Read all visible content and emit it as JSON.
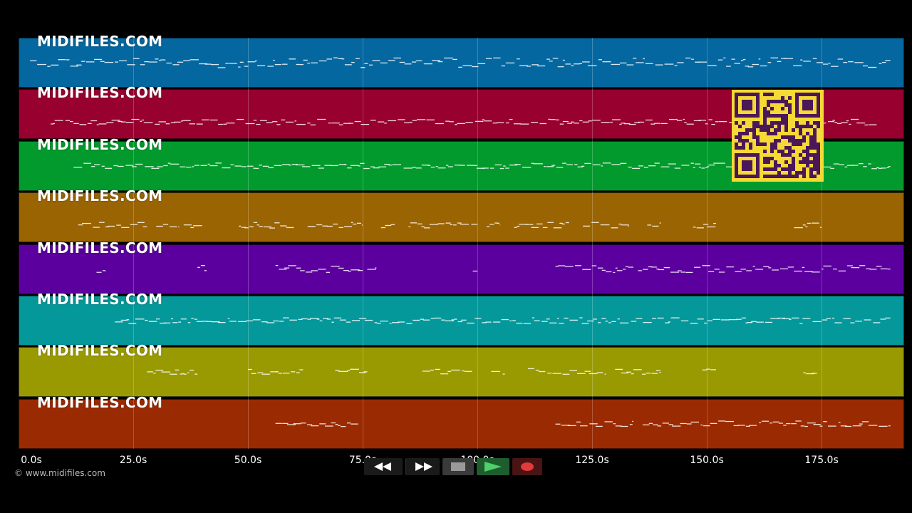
{
  "tracks": [
    {
      "label": "MIDIFILES.COM",
      "color": "#05679f"
    },
    {
      "label": "MIDIFILES.COM",
      "color": "#97002f"
    },
    {
      "label": "MIDIFILES.COM",
      "color": "#029a2c"
    },
    {
      "label": "MIDIFILES.COM",
      "color": "#9a6402"
    },
    {
      "label": "MIDIFILES.COM",
      "color": "#5b009e"
    },
    {
      "label": "MIDIFILES.COM",
      "color": "#04989b"
    },
    {
      "label": "MIDIFILES.COM",
      "color": "#999a02"
    },
    {
      "label": "MIDIFILES.COM",
      "color": "#9a2a02"
    }
  ],
  "timeline": {
    "max_seconds": 193,
    "ticks": [
      "0.0s",
      "25.0s",
      "50.0s",
      "75.0s",
      "100.0s",
      "125.0s",
      "150.0s",
      "175.0s"
    ],
    "tick_values": [
      0,
      25,
      50,
      75,
      100,
      125,
      150,
      175
    ]
  },
  "note_ranges": [
    [
      [
        2.5,
        190
      ]
    ],
    [
      [
        7,
        187
      ]
    ],
    [
      [
        12,
        190
      ]
    ],
    [
      [
        13,
        28
      ],
      [
        30,
        35
      ],
      [
        36,
        40
      ],
      [
        48,
        60
      ],
      [
        63,
        75
      ],
      [
        79,
        82
      ],
      [
        85,
        100
      ],
      [
        102,
        105
      ],
      [
        108,
        120
      ],
      [
        123,
        133
      ],
      [
        137,
        140
      ],
      [
        147,
        152
      ],
      [
        169,
        175
      ]
    ],
    [
      [
        17,
        19
      ],
      [
        39,
        41
      ],
      [
        56,
        67
      ],
      [
        67,
        75
      ],
      [
        76,
        78
      ],
      [
        99,
        100
      ],
      [
        117,
        134
      ],
      [
        135,
        190
      ]
    ],
    [
      [
        21,
        190
      ]
    ],
    [
      [
        28,
        39
      ],
      [
        50,
        62
      ],
      [
        69,
        76
      ],
      [
        88,
        99
      ],
      [
        103,
        106
      ],
      [
        111,
        128
      ],
      [
        130,
        140
      ],
      [
        149,
        152
      ],
      [
        171,
        174
      ]
    ],
    [
      [
        56,
        74
      ],
      [
        117,
        134
      ],
      [
        136,
        190
      ]
    ]
  ],
  "copyright": "© www.midifiles.com",
  "transport": {
    "rewind_icon": "rewind-icon",
    "fastforward_icon": "fast-forward-icon",
    "stop_icon": "stop-icon",
    "play_icon": "play-icon",
    "record_icon": "record-icon"
  },
  "qr_color": "#f5d935",
  "qr_dark": "#4a1758"
}
